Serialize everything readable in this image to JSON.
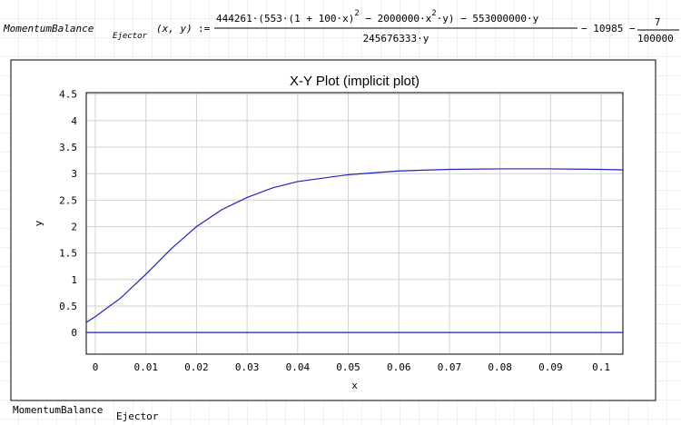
{
  "formula": {
    "name": "MomentumBalance",
    "subscript": "Ejector",
    "args": "(x, y)",
    "assign": ":=",
    "numerator": [
      "444261·(553·(1 + 100·x)",
      "2",
      " − 2000000·x",
      "2",
      "·y) − 553000000·y"
    ],
    "denominator": "245676333·y",
    "tail": "− 10985 − ",
    "frac_num": "7",
    "frac_den": "100000"
  },
  "chart_data": {
    "type": "line",
    "title": "X-Y Plot (implicit plot)",
    "x_label": "x",
    "y_label": "y",
    "x": [
      -0.0018,
      0,
      0.005,
      0.01,
      0.015,
      0.02,
      0.025,
      0.03,
      0.035,
      0.04,
      0.05,
      0.06,
      0.07,
      0.08,
      0.09,
      0.1,
      0.1043
    ],
    "series": [
      {
        "color": "#2020c8",
        "values": [
          0.19,
          0.3,
          0.65,
          1.1,
          1.58,
          2.0,
          2.32,
          2.55,
          2.73,
          2.85,
          2.98,
          3.05,
          3.08,
          3.09,
          3.09,
          3.08,
          3.07
        ]
      },
      {
        "color": "#2020c8",
        "values": [
          0,
          0,
          0,
          0,
          0,
          0,
          0,
          0,
          0,
          0,
          0,
          0,
          0,
          0,
          0,
          0,
          0
        ]
      }
    ],
    "xlim": [
      -0.0018,
      0.1043
    ],
    "ylim": [
      -0.41,
      4.53
    ],
    "xticks": [
      0,
      0.01,
      0.02,
      0.03,
      0.04,
      0.05,
      0.06,
      0.07,
      0.08,
      0.09,
      0.1
    ],
    "yticks": [
      0,
      0.5,
      1,
      1.5,
      2,
      2.5,
      3,
      3.5,
      4,
      4.5
    ],
    "grid": true
  },
  "footer": {
    "name": "MomentumBalance",
    "subscript": "Ejector"
  }
}
